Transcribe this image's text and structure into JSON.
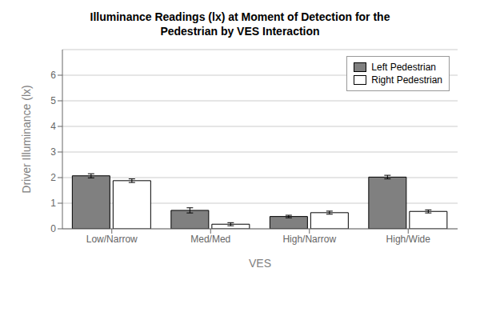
{
  "chart_data": {
    "type": "bar",
    "title": "Illuminance Readings (lx) at Moment of Detection for the\nPedestrian by VES Interaction",
    "x_label": "VES",
    "y_label": "Driver Illuminance (lx)",
    "categories": [
      "Low/Narrow",
      "Med/Med",
      "High/Narrow",
      "High/Wide"
    ],
    "series": [
      {
        "name": "Left Pedestrian",
        "color": "#808080",
        "values": [
          2.07,
          0.72,
          0.48,
          2.02
        ],
        "errors": [
          0.08,
          0.1,
          0.05,
          0.07
        ]
      },
      {
        "name": "Right Pedestrian",
        "color": "#ffffff",
        "values": [
          1.88,
          0.18,
          0.63,
          0.68
        ],
        "errors": [
          0.07,
          0.06,
          0.06,
          0.06
        ]
      }
    ],
    "ylim": [
      0,
      7
    ],
    "yticks": [
      0,
      1,
      2,
      3,
      4,
      5,
      6
    ],
    "grid": true,
    "legend": "upper right"
  }
}
